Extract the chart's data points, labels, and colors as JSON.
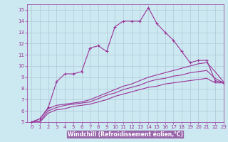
{
  "xlabel": "Windchill (Refroidissement éolien,°C)",
  "bg_color": "#cce8f0",
  "grid_color": "#b0c8d8",
  "line_color": "#993399",
  "xlim": [
    -0.5,
    23
  ],
  "ylim": [
    5,
    15.5
  ],
  "xticks": [
    0,
    1,
    2,
    3,
    4,
    5,
    6,
    7,
    8,
    9,
    10,
    11,
    12,
    13,
    14,
    15,
    16,
    17,
    18,
    19,
    20,
    21,
    22,
    23
  ],
  "yticks": [
    5,
    6,
    7,
    8,
    9,
    10,
    11,
    12,
    13,
    14,
    15
  ],
  "series": [
    [
      5.0,
      5.3,
      6.3,
      8.6,
      9.3,
      9.3,
      9.5,
      11.6,
      11.8,
      11.3,
      13.5,
      14.0,
      14.0,
      14.0,
      15.2,
      13.8,
      13.0,
      12.3,
      11.3,
      10.3,
      10.5,
      10.5,
      8.7,
      8.5
    ],
    [
      5.0,
      5.3,
      6.2,
      6.5,
      6.6,
      6.7,
      6.8,
      7.0,
      7.3,
      7.6,
      7.9,
      8.2,
      8.4,
      8.7,
      9.0,
      9.2,
      9.4,
      9.6,
      9.8,
      10.0,
      10.2,
      10.3,
      9.5,
      8.6
    ],
    [
      5.0,
      5.1,
      6.0,
      6.3,
      6.5,
      6.6,
      6.7,
      6.8,
      7.1,
      7.4,
      7.6,
      7.9,
      8.1,
      8.3,
      8.6,
      8.8,
      8.9,
      9.1,
      9.2,
      9.4,
      9.5,
      9.6,
      8.9,
      8.5
    ],
    [
      5.0,
      5.0,
      5.8,
      6.1,
      6.2,
      6.4,
      6.5,
      6.6,
      6.8,
      7.0,
      7.3,
      7.5,
      7.7,
      7.9,
      8.1,
      8.2,
      8.4,
      8.5,
      8.6,
      8.7,
      8.8,
      8.9,
      8.5,
      8.5
    ]
  ],
  "marker": "+",
  "markersize": 3,
  "linewidth": 0.8,
  "tick_fontsize": 5,
  "xlabel_fontsize": 5.5,
  "xlabel_color": "#993399",
  "xlabel_bg": "#9966aa"
}
